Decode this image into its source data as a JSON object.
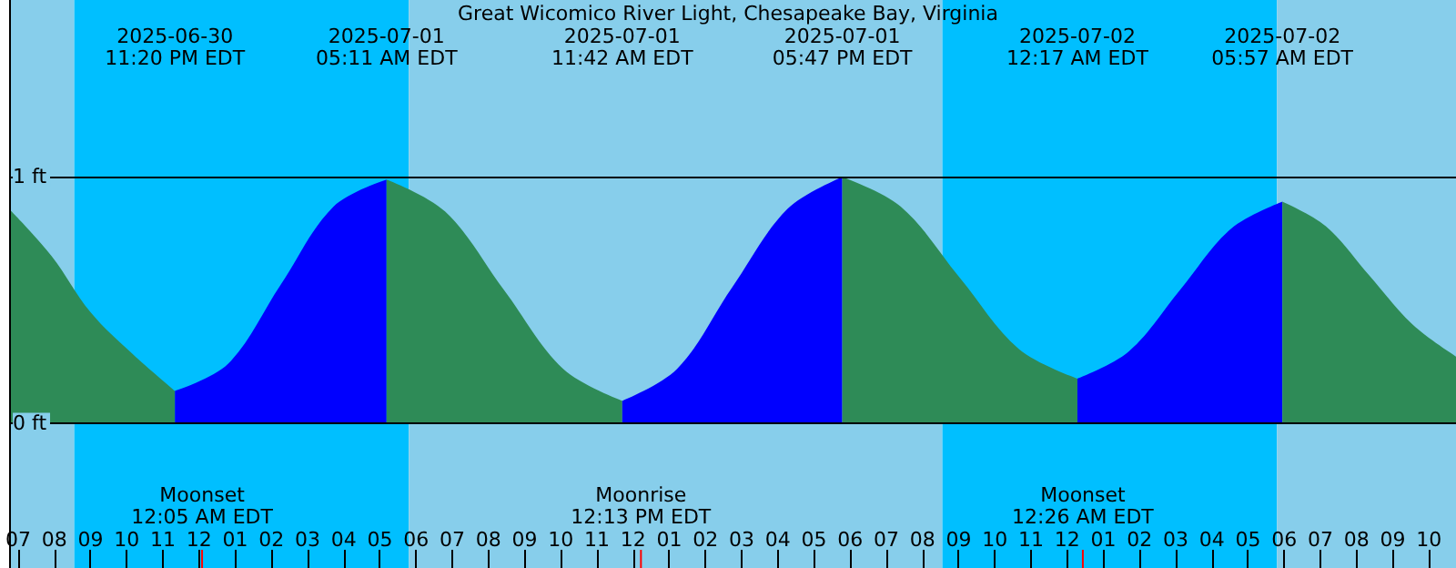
{
  "chart_data": {
    "type": "area",
    "title": "Great Wicomico River Light, Chesapeake Bay, Virginia",
    "xlim": [
      "2025-06-30T18:45",
      "2025-07-02T10:45"
    ],
    "xticks": [
      {
        "value": "2025-06-30T19:00",
        "label": "07"
      },
      {
        "value": "2025-06-30T20:00",
        "label": "08"
      },
      {
        "value": "2025-06-30T21:00",
        "label": "09"
      },
      {
        "value": "2025-06-30T22:00",
        "label": "10"
      },
      {
        "value": "2025-06-30T23:00",
        "label": "11"
      },
      {
        "value": "2025-07-01T00:00",
        "label": "12"
      },
      {
        "value": "2025-07-01T01:00",
        "label": "01"
      },
      {
        "value": "2025-07-01T02:00",
        "label": "02"
      },
      {
        "value": "2025-07-01T03:00",
        "label": "03"
      },
      {
        "value": "2025-07-01T04:00",
        "label": "04"
      },
      {
        "value": "2025-07-01T05:00",
        "label": "05"
      },
      {
        "value": "2025-07-01T06:00",
        "label": "06"
      },
      {
        "value": "2025-07-01T07:00",
        "label": "07"
      },
      {
        "value": "2025-07-01T08:00",
        "label": "08"
      },
      {
        "value": "2025-07-01T09:00",
        "label": "09"
      },
      {
        "value": "2025-07-01T10:00",
        "label": "10"
      },
      {
        "value": "2025-07-01T11:00",
        "label": "11"
      },
      {
        "value": "2025-07-01T12:00",
        "label": "12"
      },
      {
        "value": "2025-07-01T13:00",
        "label": "01"
      },
      {
        "value": "2025-07-01T14:00",
        "label": "02"
      },
      {
        "value": "2025-07-01T15:00",
        "label": "03"
      },
      {
        "value": "2025-07-01T16:00",
        "label": "04"
      },
      {
        "value": "2025-07-01T17:00",
        "label": "05"
      },
      {
        "value": "2025-07-01T18:00",
        "label": "06"
      },
      {
        "value": "2025-07-01T19:00",
        "label": "07"
      },
      {
        "value": "2025-07-01T20:00",
        "label": "08"
      },
      {
        "value": "2025-07-01T21:00",
        "label": "09"
      },
      {
        "value": "2025-07-01T22:00",
        "label": "10"
      },
      {
        "value": "2025-07-01T23:00",
        "label": "11"
      },
      {
        "value": "2025-07-02T00:00",
        "label": "12"
      },
      {
        "value": "2025-07-02T01:00",
        "label": "01"
      },
      {
        "value": "2025-07-02T02:00",
        "label": "02"
      },
      {
        "value": "2025-07-02T03:00",
        "label": "03"
      },
      {
        "value": "2025-07-02T04:00",
        "label": "04"
      },
      {
        "value": "2025-07-02T05:00",
        "label": "05"
      },
      {
        "value": "2025-07-02T06:00",
        "label": "06"
      },
      {
        "value": "2025-07-02T07:00",
        "label": "07"
      },
      {
        "value": "2025-07-02T08:00",
        "label": "08"
      },
      {
        "value": "2025-07-02T09:00",
        "label": "09"
      },
      {
        "value": "2025-07-02T10:00",
        "label": "10"
      }
    ],
    "ylim": [
      -0.59,
      1.72
    ],
    "yticks": [
      {
        "value": 0,
        "label": "0 ft"
      },
      {
        "value": 1,
        "label": "1 ft"
      }
    ],
    "grid": "y",
    "marker": "none",
    "series": [
      {
        "color": "#2e8b57",
        "x": [
          "2025-06-30T18:45",
          "2025-06-30T19:55",
          "2025-06-30T21:00",
          "2025-06-30T22:10",
          "2025-06-30T23:20"
        ],
        "values": [
          0.87,
          0.68,
          0.45,
          0.28,
          0.13
        ]
      },
      {
        "color": "#0000ff",
        "x": [
          "2025-06-30T23:20",
          "2025-07-01T00:48",
          "2025-07-01T02:15",
          "2025-07-01T03:43",
          "2025-07-01T05:11"
        ],
        "values": [
          0.13,
          0.24,
          0.56,
          0.88,
          0.99
        ]
      },
      {
        "color": "#2e8b57",
        "x": [
          "2025-07-01T05:11",
          "2025-07-01T06:48",
          "2025-07-01T08:26",
          "2025-07-01T10:04",
          "2025-07-01T11:42"
        ],
        "values": [
          0.99,
          0.86,
          0.54,
          0.22,
          0.09
        ]
      },
      {
        "color": "#0000ff",
        "x": [
          "2025-07-01T11:42",
          "2025-07-01T13:13",
          "2025-07-01T14:44",
          "2025-07-01T16:16",
          "2025-07-01T17:47"
        ],
        "values": [
          0.09,
          0.22,
          0.55,
          0.87,
          1.0
        ]
      },
      {
        "color": "#2e8b57",
        "x": [
          "2025-07-01T17:47",
          "2025-07-01T19:24",
          "2025-07-01T21:02",
          "2025-07-01T22:40",
          "2025-07-02T00:17"
        ],
        "values": [
          1.0,
          0.88,
          0.59,
          0.3,
          0.18
        ]
      },
      {
        "color": "#0000ff",
        "x": [
          "2025-07-02T00:17",
          "2025-07-02T01:42",
          "2025-07-02T03:07",
          "2025-07-02T04:32",
          "2025-07-02T05:57"
        ],
        "values": [
          0.18,
          0.29,
          0.54,
          0.79,
          0.9
        ]
      },
      {
        "color": "#2e8b57",
        "x": [
          "2025-07-02T05:57",
          "2025-07-02T07:09",
          "2025-07-02T08:21",
          "2025-07-02T09:33",
          "2025-07-02T10:45"
        ],
        "values": [
          0.9,
          0.8,
          0.6,
          0.4,
          0.27
        ]
      }
    ],
    "bands": [
      {
        "axis": "x",
        "from": "2025-06-30T18:45",
        "to": "2025-06-30T20:33",
        "color": "#87ceeb"
      },
      {
        "axis": "x",
        "from": "2025-06-30T20:33",
        "to": "2025-07-01T05:48",
        "color": "#00bfff"
      },
      {
        "axis": "x",
        "from": "2025-07-01T05:48",
        "to": "2025-07-01T20:33",
        "color": "#87ceeb"
      },
      {
        "axis": "x",
        "from": "2025-07-01T20:33",
        "to": "2025-07-02T05:48",
        "color": "#00bfff"
      },
      {
        "axis": "x",
        "from": "2025-07-02T05:48",
        "to": "2025-07-02T10:45",
        "color": "#87ceeb"
      }
    ],
    "ref_lines": [
      {
        "axis": "x",
        "value": "2025-07-01T00:05",
        "label": "Moonset\n12:05 AM EDT",
        "color": "#ff0000"
      },
      {
        "axis": "x",
        "value": "2025-07-01T12:13",
        "label": "Moonrise\n12:13 PM EDT",
        "color": "#ff0000"
      },
      {
        "axis": "x",
        "value": "2025-07-02T00:26",
        "label": "Moonset\n12:26 AM EDT",
        "color": "#ff0000"
      }
    ],
    "annotations": [
      "2025-06-30\n11:20 PM EDT",
      "2025-07-01\n05:11 AM EDT",
      "2025-07-01\n11:42 AM EDT",
      "2025-07-01\n05:47 PM EDT",
      "2025-07-02\n12:17 AM EDT",
      "2025-07-02\n05:57 AM EDT"
    ]
  }
}
